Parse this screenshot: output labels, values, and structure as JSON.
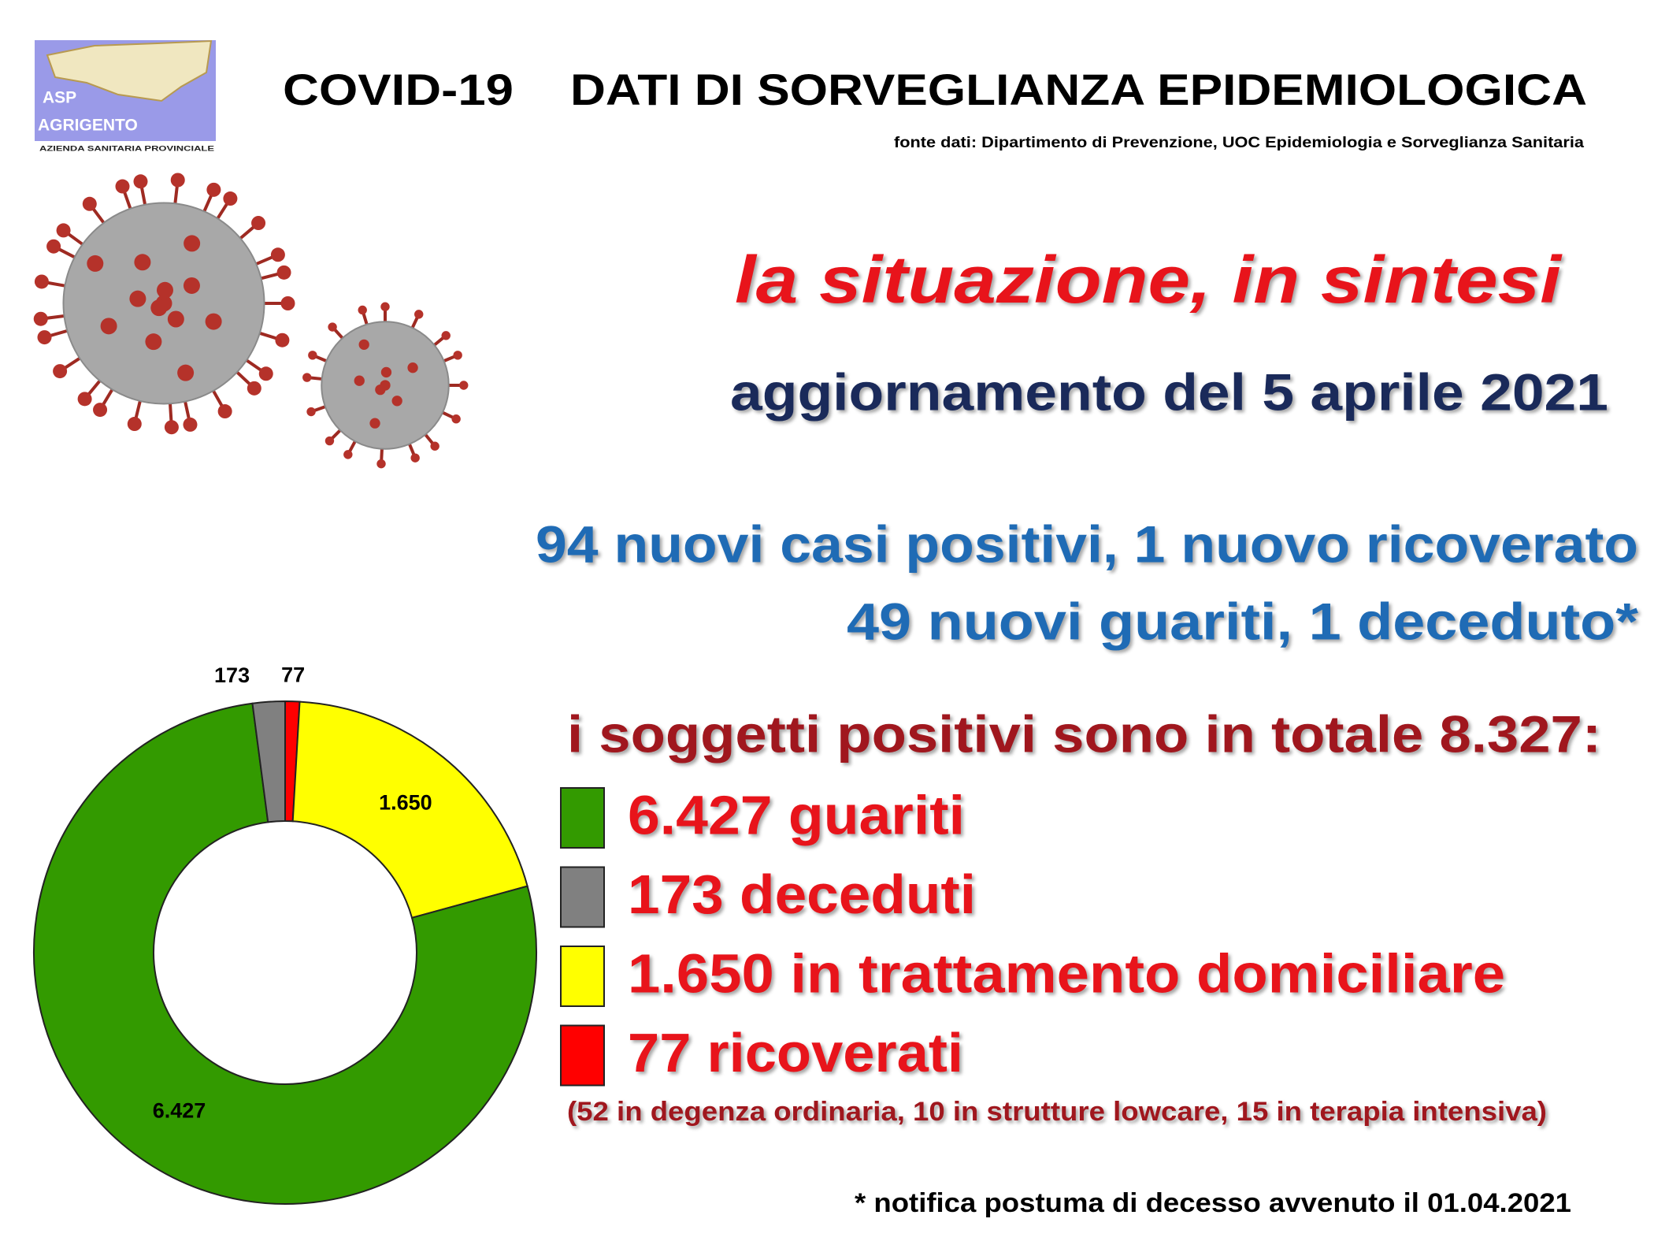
{
  "logo": {
    "line1": "ASP",
    "line2": "AGRIGENTO",
    "line3": "AZIENDA SANITARIA PROVINCIALE"
  },
  "header": {
    "title_left": "COVID-19",
    "title_right": "DATI DI SORVEGLIANZA EPIDEMIOLOGICA",
    "source": "fonte dati: Dipartimento di Prevenzione, UOC Epidemiologia e Sorveglianza Sanitaria"
  },
  "headline": "la situazione, in sintesi",
  "update": "aggiornamento del 5 aprile 2021",
  "news": [
    "94 nuovi casi positivi, 1 nuovo ricoverato",
    "49 nuovi guariti, 1 deceduto*"
  ],
  "summary": {
    "heading": "i soggetti positivi sono in totale 8.327:",
    "items": [
      {
        "text": "6.427 guariti",
        "color": "#339a00"
      },
      {
        "text": "173 deceduti",
        "color": "#808080"
      },
      {
        "text": "1.650 in trattamento domiciliare",
        "color": "#ffff00"
      },
      {
        "text": "77 ricoverati",
        "color": "#ff0000"
      }
    ],
    "note": "(52 in degenza ordinaria, 10 in strutture lowcare, 15 in terapia intensiva)"
  },
  "footnote": "* notifica postuma di decesso avvenuto il 01.04.2021",
  "chart_data": {
    "type": "donut",
    "values": [
      77,
      1650,
      6427,
      173
    ],
    "value_labels": [
      "77",
      "1.650",
      "6.427",
      "173"
    ],
    "colors": [
      "#ff0000",
      "#ffff00",
      "#339a00",
      "#808080"
    ]
  }
}
